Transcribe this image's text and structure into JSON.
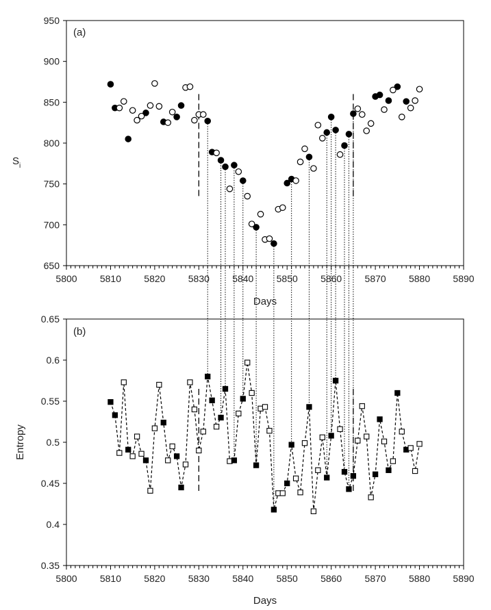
{
  "chart_data": [
    {
      "type": "scatter",
      "panel_label": "(a)",
      "xlabel": "Days",
      "ylabel": "S",
      "ylabel_sub": "i",
      "xlim": [
        5800,
        5890
      ],
      "ylim": [
        650,
        950
      ],
      "xticks": [
        5800,
        5810,
        5820,
        5830,
        5840,
        5850,
        5860,
        5870,
        5880,
        5890
      ],
      "yticks": [
        650,
        700,
        750,
        800,
        850,
        900,
        950
      ],
      "dashed_markers": [
        {
          "x": 5830,
          "y_range": [
            735,
            860
          ]
        },
        {
          "x": 5865,
          "y_range": [
            735,
            860
          ]
        }
      ],
      "series": [
        {
          "marker": "filled-circle",
          "points": [
            [
              5810,
              872
            ],
            [
              5811,
              843
            ],
            [
              5814,
              805
            ],
            [
              5818,
              837
            ],
            [
              5822,
              826
            ],
            [
              5825,
              832
            ],
            [
              5826,
              846
            ],
            [
              5832,
              827
            ],
            [
              5833,
              789
            ],
            [
              5835,
              779
            ],
            [
              5836,
              771
            ],
            [
              5838,
              773
            ],
            [
              5840,
              754
            ],
            [
              5843,
              697
            ],
            [
              5847,
              677
            ],
            [
              5850,
              751
            ],
            [
              5851,
              756
            ],
            [
              5855,
              783
            ],
            [
              5859,
              813
            ],
            [
              5860,
              832
            ],
            [
              5861,
              816
            ],
            [
              5863,
              797
            ],
            [
              5864,
              811
            ],
            [
              5865,
              836
            ],
            [
              5870,
              857
            ],
            [
              5871,
              859
            ],
            [
              5873,
              852
            ],
            [
              5875,
              869
            ],
            [
              5877,
              851
            ]
          ]
        },
        {
          "marker": "open-circle",
          "points": [
            [
              5812,
              843
            ],
            [
              5813,
              851
            ],
            [
              5815,
              840
            ],
            [
              5816,
              828
            ],
            [
              5817,
              833
            ],
            [
              5819,
              846
            ],
            [
              5820,
              873
            ],
            [
              5821,
              845
            ],
            [
              5823,
              825
            ],
            [
              5824,
              838
            ],
            [
              5827,
              868
            ],
            [
              5828,
              869
            ],
            [
              5829,
              828
            ],
            [
              5830,
              835
            ],
            [
              5831,
              835
            ],
            [
              5834,
              788
            ],
            [
              5837,
              744
            ],
            [
              5839,
              765
            ],
            [
              5841,
              735
            ],
            [
              5842,
              701
            ],
            [
              5844,
              713
            ],
            [
              5845,
              682
            ],
            [
              5846,
              683
            ],
            [
              5848,
              719
            ],
            [
              5849,
              721
            ],
            [
              5852,
              754
            ],
            [
              5853,
              777
            ],
            [
              5854,
              793
            ],
            [
              5856,
              769
            ],
            [
              5857,
              822
            ],
            [
              5858,
              806
            ],
            [
              5862,
              786
            ],
            [
              5866,
              842
            ],
            [
              5867,
              835
            ],
            [
              5868,
              815
            ],
            [
              5869,
              824
            ],
            [
              5872,
              841
            ],
            [
              5874,
              865
            ],
            [
              5876,
              832
            ],
            [
              5878,
              843
            ],
            [
              5879,
              852
            ],
            [
              5880,
              866
            ]
          ]
        }
      ]
    },
    {
      "type": "line",
      "panel_label": "(b)",
      "xlabel": "Days",
      "ylabel": "Entropy",
      "xlim": [
        5800,
        5890
      ],
      "ylim": [
        0.35,
        0.65
      ],
      "xticks": [
        5800,
        5810,
        5820,
        5830,
        5840,
        5850,
        5860,
        5870,
        5880,
        5890
      ],
      "yticks": [
        0.35,
        0.4,
        0.45,
        0.5,
        0.55,
        0.6,
        0.65
      ],
      "ytick_labels": [
        "0.35",
        "0.4",
        "0.45",
        "0.5",
        "0.55",
        "0.6",
        "0.65"
      ],
      "line_style": "dashed",
      "dashed_markers": [
        {
          "x": 5830,
          "y_range": [
            0.44,
            0.565
          ]
        },
        {
          "x": 5865,
          "y_range": [
            0.44,
            0.565
          ]
        }
      ],
      "points": [
        [
          5810,
          0.549,
          "f"
        ],
        [
          5811,
          0.533,
          "f"
        ],
        [
          5812,
          0.487,
          "o"
        ],
        [
          5813,
          0.573,
          "o"
        ],
        [
          5814,
          0.491,
          "f"
        ],
        [
          5815,
          0.483,
          "o"
        ],
        [
          5816,
          0.507,
          "o"
        ],
        [
          5817,
          0.486,
          "o"
        ],
        [
          5818,
          0.478,
          "f"
        ],
        [
          5819,
          0.441,
          "o"
        ],
        [
          5820,
          0.517,
          "o"
        ],
        [
          5821,
          0.57,
          "o"
        ],
        [
          5822,
          0.524,
          "f"
        ],
        [
          5823,
          0.478,
          "o"
        ],
        [
          5824,
          0.495,
          "o"
        ],
        [
          5825,
          0.483,
          "f"
        ],
        [
          5826,
          0.445,
          "f"
        ],
        [
          5827,
          0.473,
          "o"
        ],
        [
          5828,
          0.573,
          "o"
        ],
        [
          5829,
          0.54,
          "o"
        ],
        [
          5830,
          0.49,
          "o"
        ],
        [
          5831,
          0.513,
          "o"
        ],
        [
          5832,
          0.58,
          "f"
        ],
        [
          5833,
          0.551,
          "f"
        ],
        [
          5834,
          0.519,
          "o"
        ],
        [
          5835,
          0.53,
          "f"
        ],
        [
          5836,
          0.565,
          "f"
        ],
        [
          5837,
          0.477,
          "o"
        ],
        [
          5838,
          0.478,
          "f"
        ],
        [
          5839,
          0.535,
          "o"
        ],
        [
          5840,
          0.553,
          "f"
        ],
        [
          5841,
          0.597,
          "o"
        ],
        [
          5842,
          0.56,
          "o"
        ],
        [
          5843,
          0.472,
          "f"
        ],
        [
          5844,
          0.541,
          "o"
        ],
        [
          5845,
          0.543,
          "o"
        ],
        [
          5846,
          0.514,
          "o"
        ],
        [
          5847,
          0.418,
          "f"
        ],
        [
          5848,
          0.438,
          "o"
        ],
        [
          5849,
          0.438,
          "o"
        ],
        [
          5850,
          0.45,
          "f"
        ],
        [
          5851,
          0.497,
          "f"
        ],
        [
          5852,
          0.456,
          "o"
        ],
        [
          5853,
          0.439,
          "o"
        ],
        [
          5854,
          0.499,
          "o"
        ],
        [
          5855,
          0.543,
          "f"
        ],
        [
          5856,
          0.416,
          "o"
        ],
        [
          5857,
          0.466,
          "o"
        ],
        [
          5858,
          0.506,
          "o"
        ],
        [
          5859,
          0.457,
          "f"
        ],
        [
          5860,
          0.508,
          "f"
        ],
        [
          5861,
          0.575,
          "f"
        ],
        [
          5862,
          0.516,
          "o"
        ],
        [
          5863,
          0.464,
          "f"
        ],
        [
          5864,
          0.443,
          "f"
        ],
        [
          5865,
          0.459,
          "f"
        ],
        [
          5866,
          0.502,
          "o"
        ],
        [
          5867,
          0.544,
          "o"
        ],
        [
          5868,
          0.507,
          "o"
        ],
        [
          5869,
          0.433,
          "o"
        ],
        [
          5870,
          0.461,
          "f"
        ],
        [
          5871,
          0.528,
          "f"
        ],
        [
          5872,
          0.501,
          "o"
        ],
        [
          5873,
          0.466,
          "f"
        ],
        [
          5874,
          0.477,
          "o"
        ],
        [
          5875,
          0.56,
          "f"
        ],
        [
          5876,
          0.513,
          "o"
        ],
        [
          5877,
          0.491,
          "f"
        ],
        [
          5878,
          0.493,
          "o"
        ],
        [
          5879,
          0.465,
          "o"
        ],
        [
          5880,
          0.498,
          "o"
        ]
      ]
    }
  ],
  "connector_days": [
    5832,
    5835,
    5836,
    5838,
    5840,
    5843,
    5847,
    5851,
    5855,
    5859,
    5860,
    5861,
    5863,
    5864,
    5865
  ]
}
